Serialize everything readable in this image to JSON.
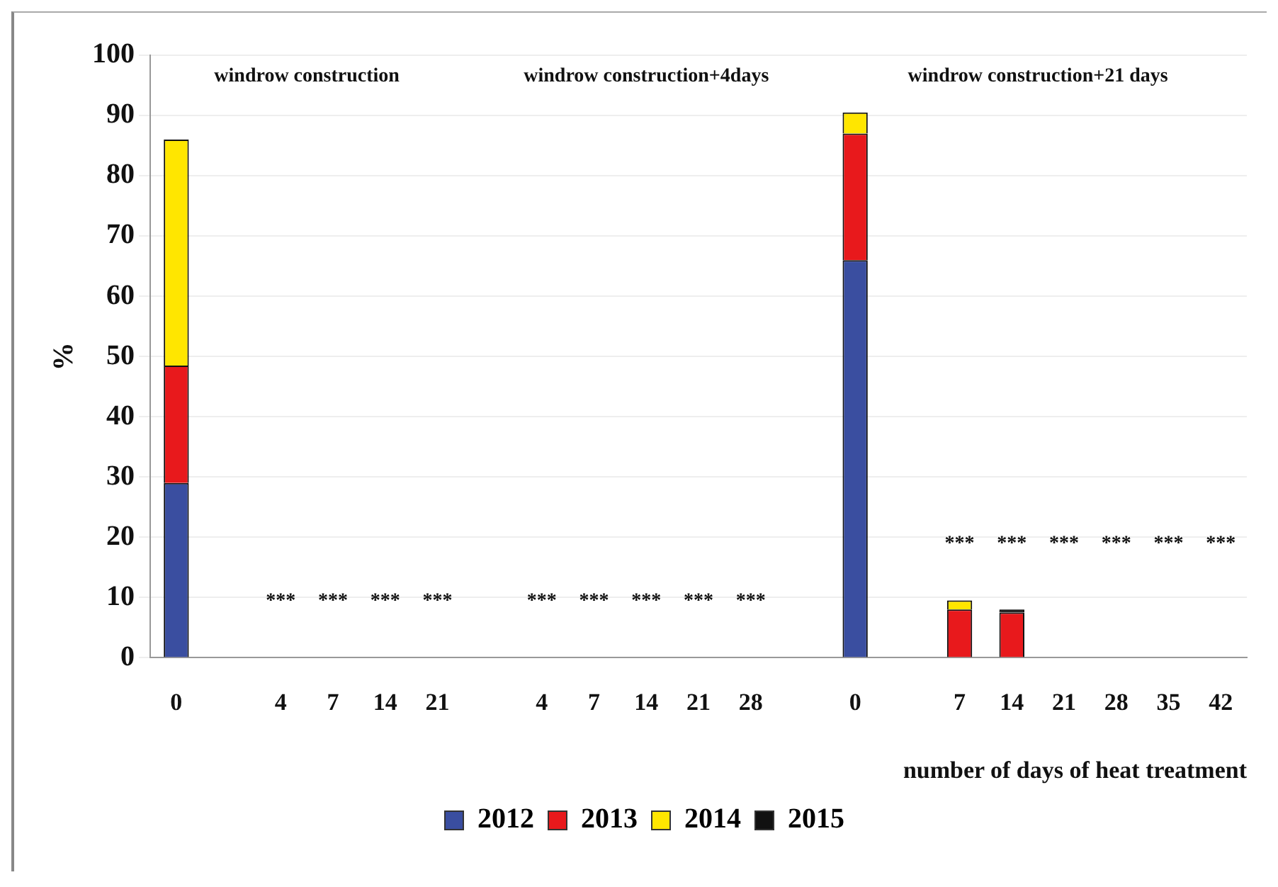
{
  "chart_data": {
    "type": "bar",
    "stacked": true,
    "ylabel": "%",
    "xlabel": "number of days of heat treatment",
    "categories": [
      "0",
      null,
      "4",
      "7",
      "14",
      "21",
      null,
      "4",
      "7",
      "14",
      "21",
      "28",
      null,
      "0",
      null,
      "7",
      "14",
      "21",
      "28",
      "35",
      "42"
    ],
    "series": [
      {
        "name": "2012",
        "color": "#3a4ea0",
        "values": [
          29,
          0,
          0,
          0,
          0,
          0,
          0,
          0,
          0,
          0,
          0,
          0,
          0,
          66,
          0,
          0,
          0,
          0,
          0,
          0,
          0
        ]
      },
      {
        "name": "2013",
        "color": "#e8191c",
        "values": [
          19.5,
          0,
          0,
          0,
          0,
          0,
          0,
          0,
          0,
          0,
          0,
          0,
          0,
          21,
          0,
          8,
          7.5,
          0,
          0,
          0,
          0
        ]
      },
      {
        "name": "2014",
        "color": "#ffe600",
        "values": [
          37.5,
          0,
          0,
          0,
          0,
          0,
          0,
          0,
          0,
          0,
          0,
          0,
          0,
          3.5,
          0,
          1.5,
          0,
          0,
          0,
          0,
          0
        ]
      },
      {
        "name": "2015",
        "color": "#111111",
        "values": [
          0,
          0,
          0,
          0,
          0,
          0,
          0,
          0,
          0,
          0,
          0,
          0,
          0,
          0,
          0,
          0,
          0.5,
          0,
          0,
          0,
          0
        ]
      }
    ],
    "ylim": [
      0,
      100
    ],
    "yticks": [
      0,
      10,
      20,
      30,
      40,
      50,
      60,
      70,
      80,
      90,
      100
    ],
    "grid": "y",
    "legend": "bottom",
    "annotations": [
      "windrow construction",
      "windrow construction+4days",
      "windrow construction+21 days",
      "*** *** *** ***",
      "*** *** *** *** ***",
      "*** *** *** *** *** ***"
    ]
  }
}
